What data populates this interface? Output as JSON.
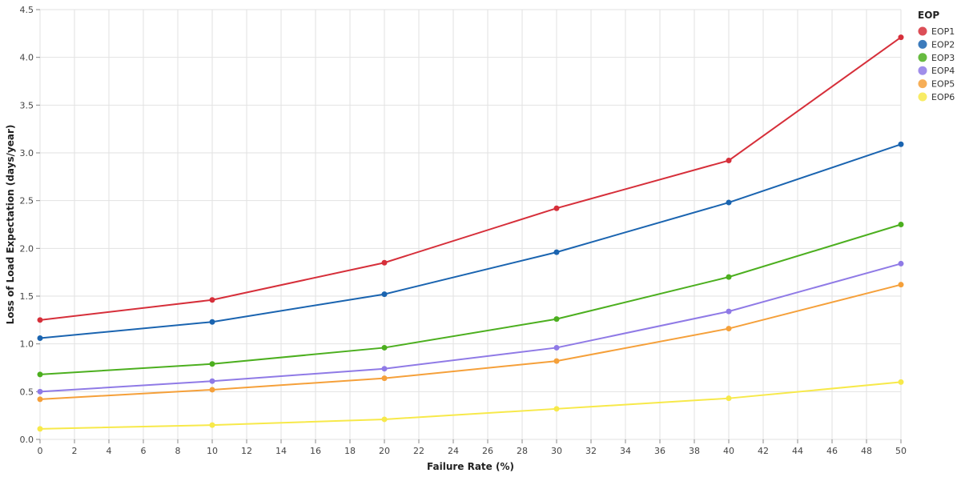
{
  "chart_data": {
    "type": "line",
    "xlabel": "Failure Rate (%)",
    "ylabel": "Loss of Load Expectation (days/year)",
    "xlim": [
      0,
      50
    ],
    "ylim": [
      0,
      4.5
    ],
    "xticks": [
      0,
      2,
      4,
      6,
      8,
      10,
      12,
      14,
      16,
      18,
      20,
      22,
      24,
      26,
      28,
      30,
      32,
      34,
      36,
      38,
      40,
      42,
      44,
      46,
      48,
      50
    ],
    "yticks": [
      0.0,
      0.5,
      1.0,
      1.5,
      2.0,
      2.5,
      3.0,
      3.5,
      4.0,
      4.5
    ],
    "ytick_labels": [
      "0.0",
      "0.5",
      "1.0",
      "1.5",
      "2.0",
      "2.5",
      "3.0",
      "3.5",
      "4.0",
      "4.5"
    ],
    "grid": true,
    "legend": {
      "title": "EOP",
      "position": "right"
    },
    "x": [
      0,
      10,
      20,
      30,
      40,
      50
    ],
    "series": [
      {
        "name": "EOP1",
        "color": "#d62f3a",
        "values": [
          1.25,
          1.46,
          1.85,
          2.42,
          2.92,
          4.21
        ]
      },
      {
        "name": "EOP2",
        "color": "#1a64b0",
        "values": [
          1.06,
          1.23,
          1.52,
          1.96,
          2.48,
          3.09
        ]
      },
      {
        "name": "EOP3",
        "color": "#4caf1f",
        "values": [
          0.68,
          0.79,
          0.96,
          1.26,
          1.7,
          2.25
        ]
      },
      {
        "name": "EOP4",
        "color": "#8f7ae6",
        "values": [
          0.5,
          0.61,
          0.74,
          0.96,
          1.34,
          1.84
        ]
      },
      {
        "name": "EOP5",
        "color": "#f5a03a",
        "values": [
          0.42,
          0.52,
          0.64,
          0.82,
          1.16,
          1.62
        ]
      },
      {
        "name": "EOP6",
        "color": "#f7e94a",
        "values": [
          0.11,
          0.15,
          0.21,
          0.32,
          0.43,
          0.6
        ]
      }
    ]
  }
}
